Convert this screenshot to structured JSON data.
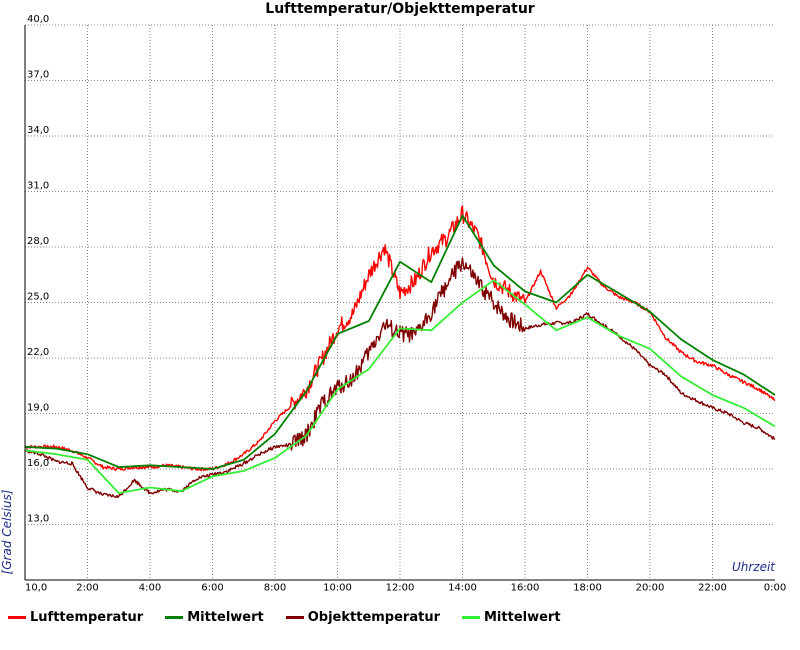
{
  "chart_data": {
    "type": "line",
    "title": "Lufttemperatur/Objekttemperatur",
    "xlabel": "Uhrzeit",
    "ylabel": "[Grad Celsius]",
    "xlim": [
      0,
      24
    ],
    "ylim": [
      10,
      40
    ],
    "x_tick_labels": [
      "10,0",
      "2:00",
      "4:00",
      "6:00",
      "8:00",
      "10:00",
      "12:00",
      "14:00",
      "16:00",
      "18:00",
      "20:00",
      "22:00",
      "0:00"
    ],
    "y_tick_labels": [
      "13,0",
      "16,0",
      "19,0",
      "22,0",
      "25,0",
      "28,0",
      "31,0",
      "34,0",
      "37,0",
      "40,0"
    ],
    "y_ticks": [
      13,
      16,
      19,
      22,
      25,
      28,
      31,
      34,
      37,
      40
    ],
    "grid": true,
    "legend_position": "bottom",
    "series": [
      {
        "name": "Lufttemperatur",
        "color": "#ff0000",
        "x": [
          0,
          0.5,
          1,
          1.5,
          2,
          2.5,
          3,
          3.5,
          4,
          4.5,
          5,
          5.5,
          6,
          6.5,
          7,
          7.5,
          8,
          8.5,
          9,
          9.5,
          10,
          10.5,
          11,
          11.5,
          12,
          12.5,
          13,
          13.5,
          14,
          14.5,
          15,
          15.5,
          16,
          16.5,
          17,
          17.5,
          18,
          18.5,
          19,
          19.5,
          20,
          20.5,
          21,
          21.5,
          22,
          22.5,
          23,
          23.5,
          24
        ],
        "values": [
          17.2,
          17.2,
          17.2,
          17.0,
          16.6,
          16.1,
          16.0,
          16.1,
          16.1,
          16.2,
          16.1,
          16.0,
          16.0,
          16.3,
          16.8,
          17.5,
          18.6,
          19.4,
          20.3,
          21.9,
          23.6,
          24.4,
          26.5,
          28.0,
          25.5,
          26.2,
          27.8,
          28.5,
          29.8,
          28.6,
          26.2,
          25.6,
          25.0,
          26.7,
          24.7,
          25.5,
          26.9,
          25.9,
          25.3,
          25.0,
          24.5,
          23.1,
          22.3,
          21.8,
          21.6,
          21.1,
          20.7,
          20.3,
          19.7
        ]
      },
      {
        "name": "Mittelwert",
        "color": "#008000",
        "x": [
          0,
          1,
          2,
          3,
          4,
          5,
          6,
          7,
          8,
          9,
          10,
          11,
          12,
          13,
          14,
          15,
          16,
          17,
          18,
          19,
          20,
          21,
          22,
          23,
          24
        ],
        "values": [
          17.2,
          17.1,
          16.8,
          16.1,
          16.2,
          16.1,
          16.0,
          16.5,
          17.9,
          20.2,
          23.3,
          24.0,
          27.2,
          26.1,
          29.7,
          27.0,
          25.6,
          25.0,
          26.5,
          25.5,
          24.5,
          23.0,
          21.9,
          21.1,
          20.0
        ]
      },
      {
        "name": "Objekttemperatur",
        "color": "#800000",
        "x": [
          0,
          0.5,
          1,
          1.5,
          2,
          2.5,
          3,
          3.5,
          4,
          4.5,
          5,
          5.5,
          6,
          6.5,
          7,
          7.5,
          8,
          8.5,
          9,
          9.5,
          10,
          10.5,
          11,
          11.5,
          12,
          12.5,
          13,
          13.5,
          14,
          14.5,
          15,
          15.5,
          16,
          16.5,
          17,
          17.5,
          18,
          18.5,
          19,
          19.5,
          20,
          20.5,
          21,
          21.5,
          22,
          22.5,
          23,
          23.5,
          24
        ],
        "values": [
          17.0,
          16.8,
          16.4,
          16.3,
          15.0,
          14.6,
          14.5,
          15.4,
          14.7,
          14.9,
          14.8,
          15.5,
          15.7,
          15.9,
          16.3,
          16.8,
          17.2,
          17.3,
          17.8,
          19.5,
          20.4,
          20.9,
          22.3,
          23.8,
          23.3,
          23.2,
          24.5,
          26.0,
          27.2,
          26.0,
          25.0,
          24.1,
          23.6,
          23.8,
          23.9,
          23.9,
          24.4,
          23.8,
          23.2,
          22.5,
          21.6,
          21.1,
          20.1,
          19.7,
          19.3,
          19.0,
          18.5,
          18.2,
          17.6
        ]
      },
      {
        "name": "Mittelwert",
        "color": "#33ee33",
        "x": [
          0,
          1,
          2,
          3,
          4,
          5,
          6,
          7,
          8,
          9,
          10,
          11,
          12,
          13,
          14,
          15,
          16,
          17,
          18,
          19,
          20,
          21,
          22,
          23,
          24
        ],
        "values": [
          17.0,
          16.8,
          16.5,
          14.7,
          15.0,
          14.8,
          15.6,
          15.9,
          16.6,
          17.8,
          20.3,
          21.4,
          23.6,
          23.5,
          25.0,
          26.2,
          24.9,
          23.5,
          24.2,
          23.2,
          22.5,
          21.0,
          20.0,
          19.3,
          18.3
        ]
      }
    ]
  }
}
